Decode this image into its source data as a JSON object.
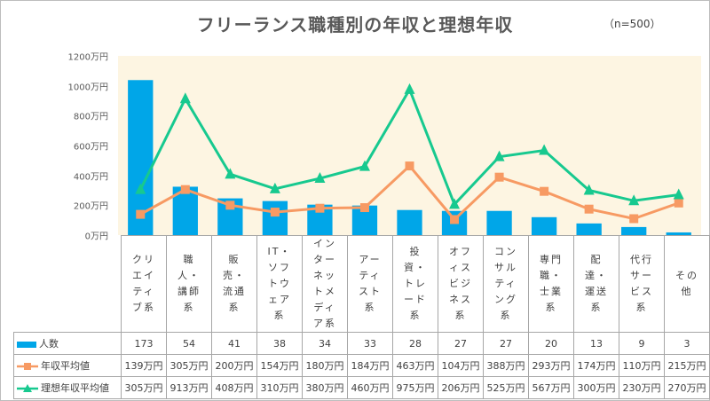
{
  "title": "フリーランス職種別の年収と理想年収",
  "note": "（n=500）",
  "chart_data": {
    "type": "bar+line",
    "title": "フリーランス職種別の年収と理想年収",
    "categories": [
      "クリエイティブ系",
      "職人・講師系",
      "販売・流通系",
      "IT・ソフトウェア系",
      "インターネットメディア系",
      "アーティスト系",
      "投資・トレード系",
      "オフィスビジネス系",
      "コンサルティング系",
      "専門職・士業系",
      "配達・運送系",
      "代行サービス系",
      "その他"
    ],
    "y_ticks": [
      "0万円",
      "200万円",
      "400万円",
      "600万円",
      "800万円",
      "1000万円",
      "1200万円"
    ],
    "ylim": [
      0,
      1200
    ],
    "grid": false,
    "legend": "table-left",
    "series": [
      {
        "name": "人数",
        "type": "bar",
        "color": "#00a6e8",
        "values": [
          173,
          54,
          41,
          38,
          34,
          33,
          28,
          27,
          27,
          20,
          13,
          9,
          3
        ],
        "labels": [
          "173",
          "54",
          "41",
          "38",
          "34",
          "33",
          "28",
          "27",
          "27",
          "20",
          "13",
          "9",
          "3"
        ]
      },
      {
        "name": "年収平均値",
        "type": "line",
        "marker": "square",
        "color": "#f79a63",
        "values": [
          139,
          305,
          200,
          154,
          180,
          184,
          463,
          104,
          388,
          293,
          174,
          110,
          215
        ],
        "labels": [
          "139万円",
          "305万円",
          "200万円",
          "154万円",
          "180万円",
          "184万円",
          "463万円",
          "104万円",
          "388万円",
          "293万円",
          "174万円",
          "110万円",
          "215万円"
        ]
      },
      {
        "name": "理想年収平均値",
        "type": "line",
        "marker": "triangle",
        "color": "#17c98f",
        "values": [
          305,
          913,
          408,
          310,
          380,
          460,
          975,
          206,
          525,
          567,
          300,
          230,
          270
        ],
        "labels": [
          "305万円",
          "913万円",
          "408万円",
          "310万円",
          "380万円",
          "460万円",
          "975万円",
          "206万円",
          "525万円",
          "567万円",
          "300万円",
          "230万円",
          "270万円"
        ]
      }
    ]
  }
}
